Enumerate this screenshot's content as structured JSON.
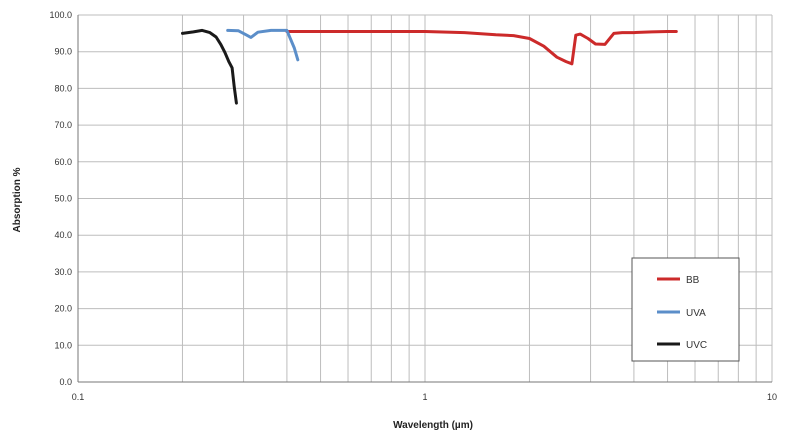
{
  "chart_data": {
    "type": "line",
    "xlabel": "Wavelength (µm)",
    "ylabel": "Absorption %",
    "x_scale": "log",
    "xlim": [
      0.1,
      10
    ],
    "ylim": [
      0,
      100
    ],
    "x_tick_labels": [
      "0.1",
      "1",
      "10"
    ],
    "y_tick_labels": [
      "0.0",
      "10.0",
      "20.0",
      "30.0",
      "40.0",
      "50.0",
      "60.0",
      "70.0",
      "80.0",
      "90.0",
      "100.0"
    ],
    "grid": true,
    "legend_position": "bottom-right",
    "series": [
      {
        "name": "BB",
        "color": "#cc2a2a",
        "x": [
          0.4,
          0.6,
          1.0,
          1.3,
          1.6,
          1.8,
          2.0,
          2.2,
          2.4,
          2.55,
          2.65,
          2.72,
          2.8,
          2.95,
          3.1,
          3.3,
          3.5,
          3.7,
          4.0,
          4.5,
          5.0,
          5.3
        ],
        "y": [
          95.5,
          95.5,
          95.5,
          95.2,
          94.6,
          94.4,
          93.6,
          91.5,
          88.5,
          87.3,
          86.7,
          94.5,
          94.8,
          93.6,
          92.1,
          92.0,
          95.0,
          95.2,
          95.2,
          95.4,
          95.5,
          95.5
        ]
      },
      {
        "name": "UVA",
        "color": "#5b8ec9",
        "x": [
          0.27,
          0.29,
          0.305,
          0.315,
          0.33,
          0.36,
          0.4,
          0.42,
          0.43
        ],
        "y": [
          95.8,
          95.7,
          94.6,
          93.9,
          95.3,
          95.8,
          95.8,
          91.0,
          87.8
        ]
      },
      {
        "name": "UVC",
        "color": "#1a1a1a",
        "x": [
          0.2,
          0.215,
          0.228,
          0.24,
          0.25,
          0.258,
          0.265,
          0.272,
          0.278,
          0.282,
          0.286
        ],
        "y": [
          95.0,
          95.4,
          95.8,
          95.2,
          94.0,
          92.0,
          89.8,
          87.3,
          85.6,
          80.5,
          76.0
        ]
      }
    ]
  }
}
